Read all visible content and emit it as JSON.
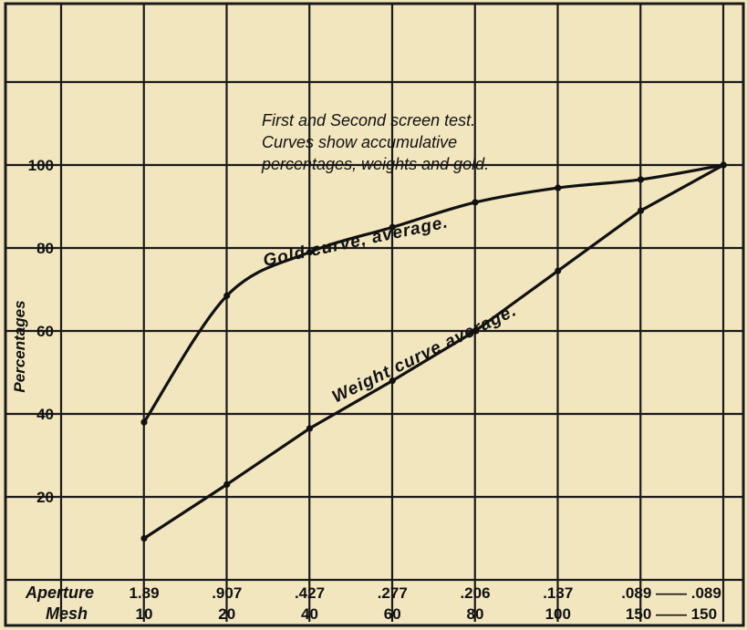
{
  "chart_data": {
    "type": "line",
    "ylabel": "Percentages",
    "y_ticks": [
      "20",
      "40",
      "60",
      "80",
      "100"
    ],
    "ylim": [
      0,
      120
    ],
    "grid": true,
    "aperture_label": "Aperture",
    "mesh_label": "Mesh",
    "categories": [
      {
        "aperture": "1.89",
        "mesh": "10"
      },
      {
        "aperture": ".907",
        "mesh": "20"
      },
      {
        "aperture": ".427",
        "mesh": "40"
      },
      {
        "aperture": ".277",
        "mesh": "60"
      },
      {
        "aperture": ".206",
        "mesh": "80"
      },
      {
        "aperture": ".137",
        "mesh": "100"
      },
      {
        "aperture": ".089 —— .089",
        "mesh": "150 —— 150"
      }
    ],
    "annotation": [
      "First and Second screen test.",
      "Curves show accumulative",
      "percentages, weights and gold."
    ],
    "series": [
      {
        "name": "Gold curve, average.",
        "points": [
          {
            "x": 0,
            "y": 38
          },
          {
            "x": 1,
            "y": 68.5
          },
          {
            "x": 2,
            "y": 79
          },
          {
            "x": 3,
            "y": 85
          },
          {
            "x": 4,
            "y": 91
          },
          {
            "x": 5,
            "y": 94.5
          },
          {
            "x": 6,
            "y": 96.5
          },
          {
            "x": 7,
            "y": 100
          }
        ]
      },
      {
        "name": "Weight curve average.",
        "points": [
          {
            "x": 0,
            "y": 10
          },
          {
            "x": 1,
            "y": 23
          },
          {
            "x": 2,
            "y": 36.5
          },
          {
            "x": 3,
            "y": 48
          },
          {
            "x": 4,
            "y": 60
          },
          {
            "x": 5,
            "y": 74.5
          },
          {
            "x": 6,
            "y": 89
          },
          {
            "x": 7,
            "y": 100
          }
        ]
      }
    ]
  }
}
